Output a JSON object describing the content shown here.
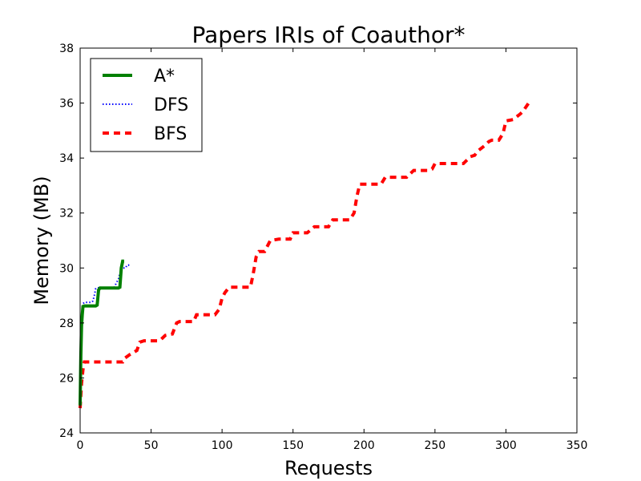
{
  "chart_data": {
    "type": "line",
    "title": "Papers IRIs of Coauthor*",
    "xlabel": "Requests",
    "ylabel": "Memory (MB)",
    "xlim": [
      0,
      350
    ],
    "ylim": [
      24,
      38
    ],
    "xticks": [
      0,
      50,
      100,
      150,
      200,
      250,
      300,
      350
    ],
    "yticks": [
      24,
      26,
      28,
      30,
      32,
      34,
      36,
      38
    ],
    "grid": false,
    "legend_position": "top-left",
    "series": [
      {
        "name": "A*",
        "color": "#008000",
        "style": "solid",
        "x": [
          0,
          0.5,
          1,
          1.5,
          2,
          3,
          4,
          5,
          6,
          7,
          8,
          9,
          10,
          11,
          12,
          13,
          14,
          15,
          16,
          17,
          18,
          19,
          20,
          21,
          22,
          23,
          24,
          25,
          26,
          27,
          28,
          29,
          30,
          31
        ],
        "y": [
          25.0,
          26.8,
          27.9,
          28.3,
          28.6,
          28.62,
          28.62,
          28.62,
          28.62,
          28.62,
          28.62,
          28.62,
          28.62,
          28.62,
          28.65,
          29.2,
          29.27,
          29.27,
          29.27,
          29.27,
          29.27,
          29.27,
          29.27,
          29.27,
          29.27,
          29.27,
          29.27,
          29.27,
          29.27,
          29.27,
          29.3,
          30.0,
          30.25,
          30.25
        ]
      },
      {
        "name": "DFS",
        "color": "#0000ff",
        "style": "dotted",
        "x": [
          0,
          0.5,
          1,
          1.5,
          2,
          3,
          4,
          5,
          6,
          7,
          8,
          9,
          10,
          11,
          12,
          13,
          14,
          15,
          16,
          17,
          18,
          19,
          20,
          21,
          22,
          23,
          24,
          25,
          26,
          27,
          28,
          29,
          30,
          31,
          32,
          33,
          34,
          35
        ],
        "y": [
          25.1,
          26.9,
          28.0,
          28.5,
          28.7,
          28.75,
          28.75,
          28.75,
          28.75,
          28.75,
          28.75,
          28.8,
          29.0,
          29.25,
          29.28,
          29.28,
          29.28,
          29.28,
          29.28,
          29.28,
          29.28,
          29.28,
          29.28,
          29.28,
          29.28,
          29.3,
          29.3,
          29.4,
          29.5,
          29.6,
          29.8,
          29.95,
          29.95,
          30.0,
          30.0,
          30.1,
          30.1,
          30.15
        ]
      },
      {
        "name": "BFS",
        "color": "#ff0000",
        "style": "dashed",
        "x": [
          0,
          1,
          2,
          3,
          5,
          10,
          20,
          30,
          31,
          35,
          40,
          42,
          45,
          55,
          57,
          60,
          65,
          68,
          70,
          80,
          82,
          85,
          95,
          98,
          100,
          102,
          105,
          120,
          122,
          124,
          126,
          130,
          134,
          140,
          148,
          150,
          160,
          165,
          175,
          178,
          180,
          190,
          193,
          195,
          197,
          205,
          212,
          215,
          230,
          232,
          235,
          245,
          248,
          250,
          260,
          265,
          270,
          275,
          278,
          280,
          285,
          288,
          290,
          295,
          298,
          300,
          305,
          310,
          312,
          316
        ],
        "y": [
          24.9,
          25.8,
          26.3,
          26.58,
          26.58,
          26.58,
          26.58,
          26.58,
          26.7,
          26.85,
          27.0,
          27.3,
          27.35,
          27.35,
          27.4,
          27.55,
          27.6,
          28.0,
          28.05,
          28.05,
          28.3,
          28.3,
          28.3,
          28.5,
          28.9,
          29.1,
          29.3,
          29.3,
          29.8,
          30.4,
          30.6,
          30.6,
          31.0,
          31.05,
          31.05,
          31.28,
          31.28,
          31.5,
          31.5,
          31.75,
          31.75,
          31.75,
          32.0,
          32.6,
          33.05,
          33.05,
          33.05,
          33.3,
          33.3,
          33.4,
          33.55,
          33.55,
          33.6,
          33.8,
          33.8,
          33.8,
          33.8,
          34.05,
          34.1,
          34.25,
          34.45,
          34.6,
          34.65,
          34.65,
          34.9,
          35.35,
          35.4,
          35.6,
          35.7,
          36.0
        ]
      }
    ]
  }
}
